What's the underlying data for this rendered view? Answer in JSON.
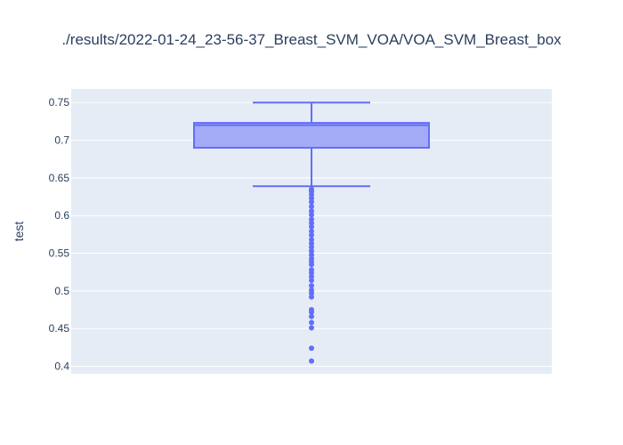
{
  "chart_data": {
    "type": "box",
    "title": "./results/2022-01-24_23-56-37_Breast_SVM_VOA/VOA_SVM_Breast_box",
    "xlabel": "",
    "ylabel": "test",
    "ylim": [
      0.39,
      0.768
    ],
    "y_ticks": [
      0.4,
      0.45,
      0.5,
      0.55,
      0.6,
      0.65,
      0.7,
      0.75
    ],
    "y_tick_labels": [
      "0.4",
      "0.45",
      "0.5",
      "0.55",
      "0.6",
      "0.65",
      "0.7",
      "0.75"
    ],
    "grid": true,
    "colors": {
      "plot_background": "#e5ecf6",
      "grid": "#ffffff",
      "box_fill": "#a3abf6",
      "box_line": "#636efa",
      "outlier": "#636efa",
      "text": "#2a3f5f"
    },
    "box": {
      "upper_fence": 0.75,
      "q3": 0.723,
      "median": 0.72,
      "q1": 0.69,
      "lower_fence": 0.639,
      "outliers": [
        0.635,
        0.632,
        0.628,
        0.623,
        0.618,
        0.612,
        0.606,
        0.601,
        0.595,
        0.59,
        0.585,
        0.579,
        0.574,
        0.568,
        0.563,
        0.558,
        0.553,
        0.548,
        0.543,
        0.539,
        0.535,
        0.528,
        0.524,
        0.519,
        0.514,
        0.507,
        0.501,
        0.497,
        0.492,
        0.475,
        0.472,
        0.466,
        0.458,
        0.451,
        0.424,
        0.407
      ]
    }
  }
}
